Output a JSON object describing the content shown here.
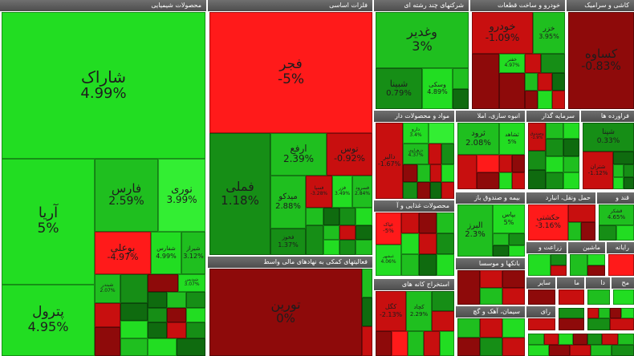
{
  "colors": {
    "header": "#555555",
    "bright_green": "#22dd22",
    "green": "#1fbf1f",
    "mid_green": "#168e16",
    "dark_green": "#0f6b0f",
    "bright_red": "#ff1a1a",
    "red": "#c80f0f",
    "dark_red": "#8e0a0a"
  },
  "sectors": {
    "chemical": {
      "header": "محصولات شیمیایی",
      "tiles": {
        "sharak": {
          "name": "شاراک",
          "pct": "4.99%"
        },
        "arya": {
          "name": "آریا",
          "pct": "5%"
        },
        "petrol": {
          "name": "پترول",
          "pct": "4.95%"
        },
        "fars": {
          "name": "فارس",
          "pct": "2.59%"
        },
        "noori": {
          "name": "نوری",
          "pct": "3.99%"
        },
        "bouali": {
          "name": "بوعلی",
          "pct": "-4.97%"
        },
        "sfars": {
          "name": "شفارس",
          "pct": "4.99%"
        },
        "shiraz": {
          "name": "شیراز",
          "pct": "3.12%"
        },
        "sbandar": {
          "name": "شبندر",
          "pct": "2.07%"
        },
        "shpdis": {
          "name": "شپدیس",
          "pct": "3.07%"
        }
      }
    },
    "metals": {
      "header": "فلزات اساسی",
      "tiles": {
        "fajr": {
          "name": "فجر",
          "pct": "-5%"
        },
        "fameli": {
          "name": "فملی",
          "pct": "1.18%"
        },
        "arfa": {
          "name": "ارفع",
          "pct": "2.39%"
        },
        "toos": {
          "name": "توس",
          "pct": "-0.92%"
        },
        "midko": {
          "name": "میدکو",
          "pct": "2.88%"
        },
        "fkhoz": {
          "name": "فخوز",
          "pct": "1.37%"
        },
        "fsapa": {
          "name": "فسپا",
          "pct": "-3.28%"
        },
        "fazar": {
          "name": "فزر",
          "pct": "3.49%"
        },
        "fsrood": {
          "name": "فسرود",
          "pct": "2.84%"
        }
      }
    },
    "finance": {
      "header": "فعالیتهای کمکی به نهادهای مالی واسط",
      "tiles": {
        "toreen": {
          "name": "تورین",
          "pct": "0%"
        }
      }
    },
    "multi": {
      "header": "شرکتهای چند رشته ای",
      "tiles": {
        "vghadir": {
          "name": "وغدیر",
          "pct": "3%"
        },
        "sbina": {
          "name": "شبینا",
          "pct": "0.79%"
        },
        "vsegi": {
          "name": "وسکی",
          "pct": "4.89%"
        }
      }
    },
    "auto": {
      "header": "خودرو و ساخت قطعات",
      "tiles": {
        "khodro": {
          "name": "خودرو",
          "pct": "-1.09%"
        },
        "khazar": {
          "name": "خزر",
          "pct": "3.95%"
        },
        "khfanar": {
          "name": "خفنر",
          "pct": "4.97%"
        }
      }
    },
    "tile": {
      "header": "کاشی و سرامیک",
      "tiles": {
        "kesava": {
          "name": "کساوه",
          "pct": "-0.83%"
        }
      }
    },
    "pharma": {
      "header": "مواد و محصولات دار",
      "tiles": {
        "dalbar": {
          "name": "دالبر",
          "pct": "-1.67%"
        },
        "darou": {
          "name": "دارو",
          "pct": "3.4%"
        },
        "dzahra": {
          "name": "دزهراوی",
          "pct": "4.37%"
        }
      }
    },
    "construction": {
      "header": "انبوه سازی، املا",
      "tiles": {
        "trowd": {
          "name": "ثرود",
          "pct": "2.08%"
        },
        "sshahed": {
          "name": "ثشاهد",
          "pct": "5%"
        }
      }
    },
    "investment": {
      "header": "سرمایه گذار",
      "tiles": {
        "vsadr": {
          "name": "وصندوق",
          "pct": "-1.9%"
        }
      }
    },
    "refinery": {
      "header": "فراورده ها",
      "tiles": {
        "shbandar": {
          "name": "شپنا",
          "pct": "0.33%"
        },
        "shtran": {
          "name": "شتران",
          "pct": "-1.12%"
        }
      }
    },
    "fund": {
      "header": "بیمه و صندوق باز",
      "tiles": {
        "albrz": {
          "name": "البرز",
          "pct": "2.3%"
        },
        "bepas": {
          "name": "بپاس",
          "pct": "5%"
        }
      }
    },
    "transport": {
      "header": "حمل ونقل، انبارد",
      "tiles": {
        "hkashti": {
          "name": "حکشتی",
          "pct": "-3.16%"
        }
      }
    },
    "sugar": {
      "header": "قند و",
      "tiles": {
        "ghshekar": {
          "name": "قشکر",
          "pct": "4.65%"
        }
      }
    },
    "food": {
      "header": "محصولات غذایی و آ",
      "tiles": {
        "ghasm": {
          "name": "غپاک",
          "pct": "-5%"
        },
        "ghnb": {
          "name": "غبشهر",
          "pct": "4.06%"
        }
      }
    },
    "banks": {
      "header": "بانکها و موسسا",
      "tiles": {}
    },
    "mining": {
      "header": "استخراج کانه های",
      "tiles": {
        "kgol": {
          "name": "کگل",
          "pct": "-2.13%"
        },
        "kchad": {
          "name": "کچاد",
          "pct": "2.29%"
        }
      }
    },
    "cement": {
      "header": "سیمان، آهک و گچ",
      "tiles": {}
    },
    "small": {
      "h1": "زراعت و",
      "h2": "ماشین",
      "h3": "رایانه",
      "h4": "سایر",
      "h5": "ما",
      "h6": "مح",
      "h7": "دا",
      "h8": "رای"
    }
  }
}
